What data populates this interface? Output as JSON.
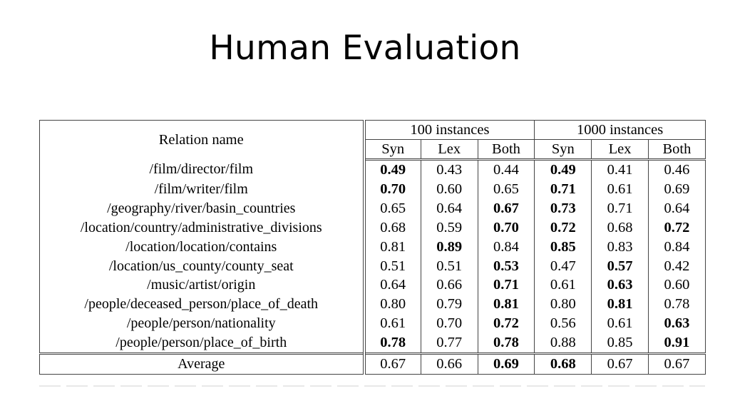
{
  "slide": {
    "title": "Human Evaluation"
  },
  "table": {
    "relation_header": "Relation name",
    "group_headers": [
      "100 instances",
      "1000 instances"
    ],
    "sub_headers": [
      "Syn",
      "Lex",
      "Both",
      "Syn",
      "Lex",
      "Both"
    ],
    "rows": [
      {
        "relation": "/film/director/film",
        "values": [
          "0.49",
          "0.43",
          "0.44",
          "0.49",
          "0.41",
          "0.46"
        ],
        "bold": [
          true,
          false,
          false,
          true,
          false,
          false
        ]
      },
      {
        "relation": "/film/writer/film",
        "values": [
          "0.70",
          "0.60",
          "0.65",
          "0.71",
          "0.61",
          "0.69"
        ],
        "bold": [
          true,
          false,
          false,
          true,
          false,
          false
        ]
      },
      {
        "relation": "/geography/river/basin_countries",
        "values": [
          "0.65",
          "0.64",
          "0.67",
          "0.73",
          "0.71",
          "0.64"
        ],
        "bold": [
          false,
          false,
          true,
          true,
          false,
          false
        ]
      },
      {
        "relation": "/location/country/administrative_divisions",
        "values": [
          "0.68",
          "0.59",
          "0.70",
          "0.72",
          "0.68",
          "0.72"
        ],
        "bold": [
          false,
          false,
          true,
          true,
          false,
          true
        ]
      },
      {
        "relation": "/location/location/contains",
        "values": [
          "0.81",
          "0.89",
          "0.84",
          "0.85",
          "0.83",
          "0.84"
        ],
        "bold": [
          false,
          true,
          false,
          true,
          false,
          false
        ]
      },
      {
        "relation": "/location/us_county/county_seat",
        "values": [
          "0.51",
          "0.51",
          "0.53",
          "0.47",
          "0.57",
          "0.42"
        ],
        "bold": [
          false,
          false,
          true,
          false,
          true,
          false
        ]
      },
      {
        "relation": "/music/artist/origin",
        "values": [
          "0.64",
          "0.66",
          "0.71",
          "0.61",
          "0.63",
          "0.60"
        ],
        "bold": [
          false,
          false,
          true,
          false,
          true,
          false
        ]
      },
      {
        "relation": "/people/deceased_person/place_of_death",
        "values": [
          "0.80",
          "0.79",
          "0.81",
          "0.80",
          "0.81",
          "0.78"
        ],
        "bold": [
          false,
          false,
          true,
          false,
          true,
          false
        ]
      },
      {
        "relation": "/people/person/nationality",
        "values": [
          "0.61",
          "0.70",
          "0.72",
          "0.56",
          "0.61",
          "0.63"
        ],
        "bold": [
          false,
          false,
          true,
          false,
          false,
          true
        ]
      },
      {
        "relation": "/people/person/place_of_birth",
        "values": [
          "0.78",
          "0.77",
          "0.78",
          "0.88",
          "0.85",
          "0.91"
        ],
        "bold": [
          true,
          false,
          true,
          false,
          false,
          true
        ]
      }
    ],
    "average": {
      "relation": "Average",
      "values": [
        "0.67",
        "0.66",
        "0.69",
        "0.68",
        "0.67",
        "0.67"
      ],
      "bold": [
        false,
        false,
        true,
        true,
        false,
        false
      ]
    }
  }
}
